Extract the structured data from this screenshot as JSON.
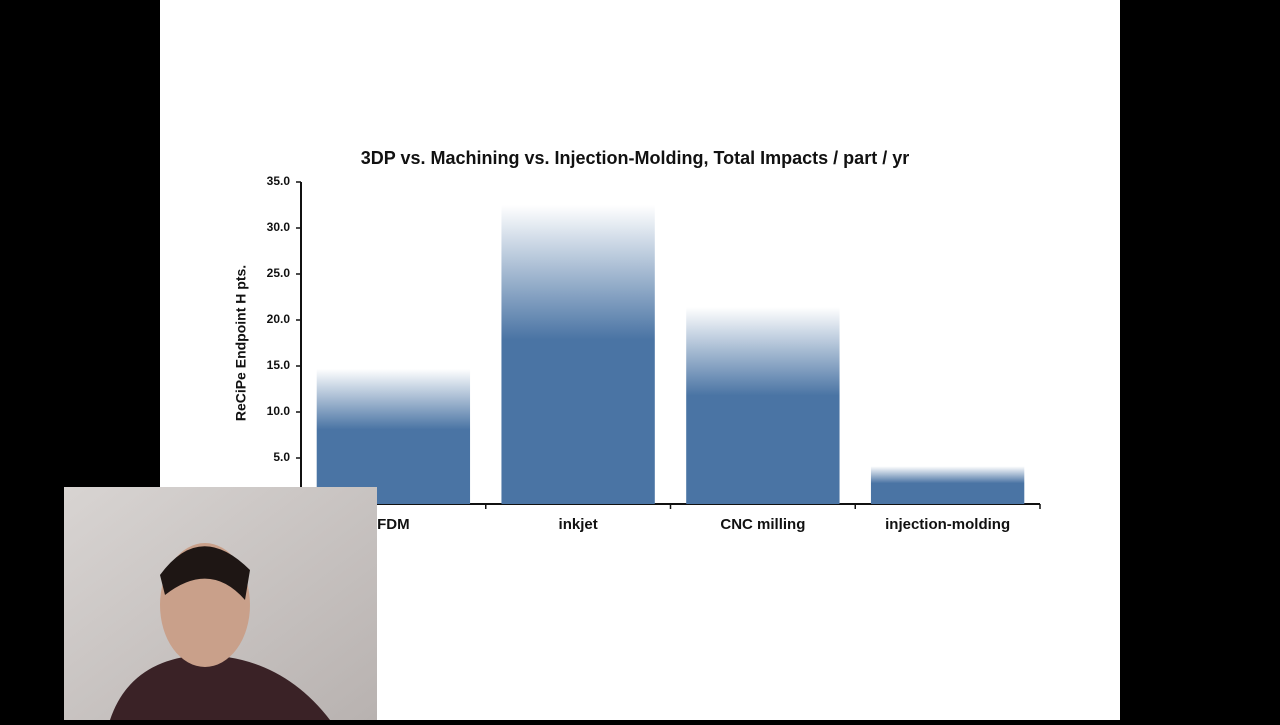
{
  "chart_data": {
    "type": "bar",
    "title": "3DP vs. Machining vs. Injection-Molding, Total Impacts / part / yr",
    "y_label": "ReCiPe Endpoint H pts.",
    "categories": [
      "FDM",
      "inkjet",
      "CNC milling",
      "injection-molding"
    ],
    "values": [
      14.7,
      32.5,
      21.4,
      4.1
    ],
    "color": "#4a74a4",
    "ylim": [
      0,
      35
    ],
    "yticks": [
      {
        "value": 5,
        "label": "5.0"
      },
      {
        "value": 10,
        "label": "10.0"
      },
      {
        "value": 15,
        "label": "15.0"
      },
      {
        "value": 20,
        "label": "20.0"
      },
      {
        "value": 25,
        "label": "25.0"
      },
      {
        "value": 30,
        "label": "30.0"
      },
      {
        "value": 35,
        "label": "35.0"
      }
    ]
  }
}
